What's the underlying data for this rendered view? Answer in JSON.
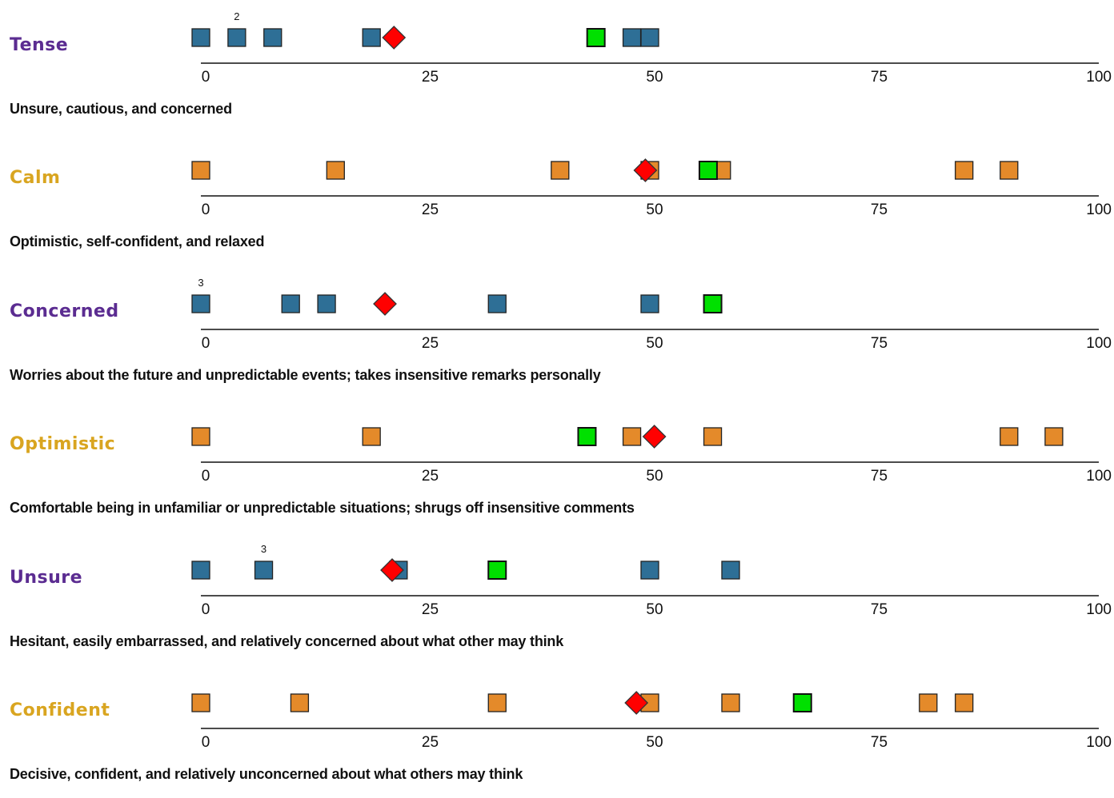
{
  "colors": {
    "negative": "#5b2c91",
    "positive": "#d9a520",
    "negative_marker": "#2e6f96",
    "positive_marker": "#e48a2a",
    "mean_marker": "#ff0000",
    "self_marker": "#00e000"
  },
  "chart_data": {
    "type": "scatter",
    "xlim": [
      0,
      100
    ],
    "ticks": [
      "0",
      "25",
      "50",
      "75",
      "100"
    ],
    "rows": [
      {
        "title": "Tense",
        "pole": "negative",
        "description": "Unsure, cautious, and concerned",
        "points": [
          0,
          4,
          8,
          19,
          48,
          50
        ],
        "counts": [
          {
            "x": 4,
            "label": "2"
          }
        ],
        "mean": 21.5,
        "self": 44
      },
      {
        "title": "Calm",
        "pole": "positive",
        "description": "Optimistic, self-confident, and relaxed",
        "points": [
          0,
          15,
          40,
          50,
          58,
          85,
          90
        ],
        "counts": [],
        "mean": 49.5,
        "self": 56.5
      },
      {
        "title": "Concerned",
        "pole": "negative",
        "description": "Worries about the future and unpredictable events; takes insensitive remarks personally",
        "points": [
          0,
          10,
          14,
          33,
          50
        ],
        "counts": [
          {
            "x": 0,
            "label": "3"
          }
        ],
        "mean": 20.5,
        "self": 57
      },
      {
        "title": "Optimistic",
        "pole": "positive",
        "description": "Comfortable being in unfamiliar or unpredictable situations; shrugs off insensitive comments",
        "points": [
          0,
          19,
          48,
          57,
          90,
          95
        ],
        "counts": [],
        "mean": 50.5,
        "self": 43
      },
      {
        "title": "Unsure",
        "pole": "negative",
        "description": "Hesitant, easily embarrassed, and relatively concerned about what other may think",
        "points": [
          0,
          7,
          22,
          50,
          59
        ],
        "counts": [
          {
            "x": 7,
            "label": "3"
          }
        ],
        "mean": 21.3,
        "self": 33
      },
      {
        "title": "Confident",
        "pole": "positive",
        "description": "Decisive, confident, and relatively unconcerned about what others may think",
        "points": [
          0,
          11,
          33,
          50,
          59,
          81,
          85
        ],
        "counts": [],
        "mean": 48.5,
        "self": 67
      }
    ]
  }
}
